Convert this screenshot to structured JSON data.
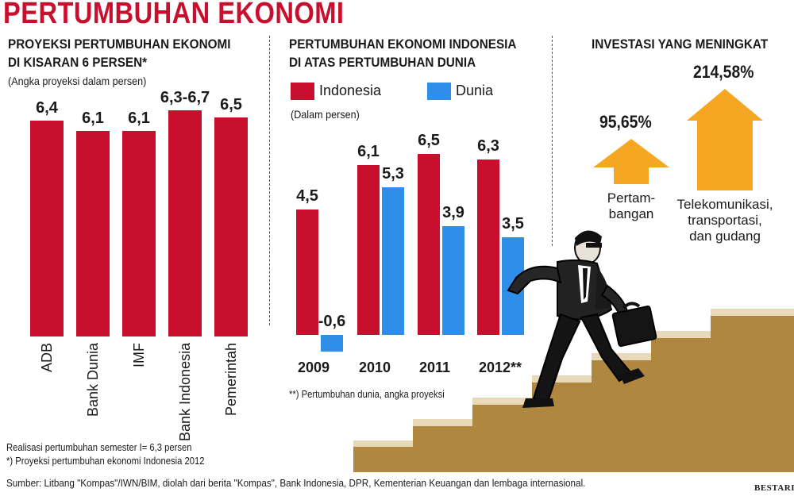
{
  "header": {
    "title": "PERTUMBUHAN EKONOMI"
  },
  "colors": {
    "indonesia": "#c8102e",
    "dunia": "#2f8fe8",
    "arrow": "#f5a623",
    "stairs": "#b0873e",
    "stairs_top": "#e8d9b8"
  },
  "chart_data": [
    {
      "type": "bar",
      "title": "PROYEKSI PERTUMBUHAN EKONOMI",
      "title_line2": "DI KISARAN 6 PERSEN*",
      "subtitle": "(Angka proyeksi dalam persen)",
      "categories": [
        "ADB",
        "Bank Dunia",
        "IMF",
        "Bank Indonesia",
        "Pemerintah"
      ],
      "values": [
        6.4,
        6.1,
        6.1,
        6.7,
        6.5
      ],
      "value_labels": [
        "6,4",
        "6,1",
        "6,1",
        "6,3-6,7",
        "6,5"
      ],
      "ylim": [
        0,
        7.2
      ],
      "grid": false,
      "notes": [
        "Realisasi pertumbuhan semester I= 6,3 persen",
        "*) Proyeksi pertumbuhan ekonomi Indonesia 2012"
      ]
    },
    {
      "type": "bar",
      "title": "PERTUMBUHAN EKONOMI INDONESIA",
      "title_line2": "DI ATAS PERTUMBUHAN DUNIA",
      "subtitle": "(Dalam persen)",
      "categories": [
        "2009",
        "2010",
        "2011",
        "2012**"
      ],
      "series": [
        {
          "name": "Indonesia",
          "values": [
            4.5,
            6.1,
            6.5,
            6.3
          ],
          "labels": [
            "4,5",
            "6,1",
            "6,5",
            "6,3"
          ]
        },
        {
          "name": "Dunia",
          "values": [
            -0.6,
            5.3,
            3.9,
            3.5
          ],
          "labels": [
            "-0,6",
            "5,3",
            "3,9",
            "3,5"
          ]
        }
      ],
      "ylim": [
        -0.6,
        6.5
      ],
      "grid": false,
      "legend": "top",
      "note": "**) Pertumbuhan dunia, angka proyeksi"
    },
    {
      "type": "bar",
      "title": "INVESTASI YANG MENINGKAT",
      "categories": [
        "Pertam- bangan",
        "Telekomunikasi, transportasi, dan gudang"
      ],
      "category_lines": [
        [
          "Pertam-",
          "bangan"
        ],
        [
          "Telekomunikasi,",
          "transportasi,",
          "dan gudang"
        ]
      ],
      "values": [
        95.65,
        214.58
      ],
      "value_labels": [
        "95,65%",
        "214,58%"
      ]
    }
  ],
  "footer": {
    "source": "Sumber: Litbang \"Kompas\"/IWN/BIM, diolah dari berita \"Kompas\", Bank Indonesia, DPR, Kementerian Keuangan dan lembaga internasional.",
    "credit": "BESTARI"
  }
}
